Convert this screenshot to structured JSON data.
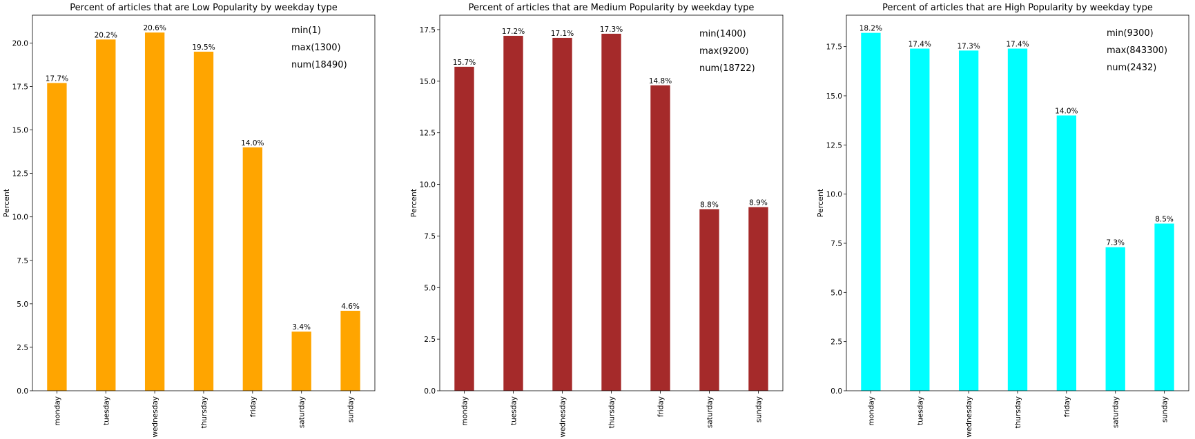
{
  "chart_data": [
    {
      "type": "bar",
      "title": "Percent of  articles that are Low Popularity by weekday type",
      "xlabel": "",
      "ylabel": "Percent",
      "categories": [
        "monday",
        "tuesday",
        "wednesday",
        "thursday",
        "friday",
        "saturday",
        "sunday"
      ],
      "values": [
        17.7,
        20.2,
        20.6,
        19.5,
        14.0,
        3.4,
        4.6
      ],
      "value_labels": [
        "17.7%",
        "20.2%",
        "20.6%",
        "19.5%",
        "14.0%",
        "3.4%",
        "4.6%"
      ],
      "color": "#FFA500",
      "ylim": [
        0,
        21.6
      ],
      "yticks": [
        0.0,
        2.5,
        5.0,
        7.5,
        10.0,
        12.5,
        15.0,
        17.5,
        20.0
      ],
      "ytick_labels": [
        "0.0",
        "2.5",
        "5.0",
        "7.5",
        "10.0",
        "12.5",
        "15.0",
        "17.5",
        "20.0"
      ],
      "annotations": [
        "min(1)",
        "max(1300)",
        "num(18490)"
      ],
      "grid": false
    },
    {
      "type": "bar",
      "title": "Percent of  articles that are Medium Popularity by weekday type",
      "xlabel": "",
      "ylabel": "Percent",
      "categories": [
        "monday",
        "tuesday",
        "wednesday",
        "thursday",
        "friday",
        "saturday",
        "sunday"
      ],
      "values": [
        15.7,
        17.2,
        17.1,
        17.3,
        14.8,
        8.8,
        8.9
      ],
      "value_labels": [
        "15.7%",
        "17.2%",
        "17.1%",
        "17.3%",
        "14.8%",
        "8.8%",
        "8.9%"
      ],
      "color": "#A52A2A",
      "ylim": [
        0,
        18.2
      ],
      "yticks": [
        0.0,
        2.5,
        5.0,
        7.5,
        10.0,
        12.5,
        15.0,
        17.5
      ],
      "ytick_labels": [
        "0.0",
        "2.5",
        "5.0",
        "7.5",
        "10.0",
        "12.5",
        "15.0",
        "17.5"
      ],
      "annotations": [
        "min(1400)",
        "max(9200)",
        "num(18722)"
      ],
      "grid": false
    },
    {
      "type": "bar",
      "title": "Percent of  articles that are High Popularity by weekday type",
      "xlabel": "",
      "ylabel": "Percent",
      "categories": [
        "monday",
        "tuesday",
        "wednesday",
        "thursday",
        "friday",
        "saturday",
        "sunday"
      ],
      "values": [
        18.2,
        17.4,
        17.3,
        17.4,
        14.0,
        7.3,
        8.5
      ],
      "value_labels": [
        "18.2%",
        "17.4%",
        "17.3%",
        "17.4%",
        "14.0%",
        "7.3%",
        "8.5%"
      ],
      "color": "#00FFFF",
      "ylim": [
        0,
        19.1
      ],
      "yticks": [
        0.0,
        2.5,
        5.0,
        7.5,
        10.0,
        12.5,
        15.0,
        17.5
      ],
      "ytick_labels": [
        "0.0",
        "2.5",
        "5.0",
        "7.5",
        "10.0",
        "12.5",
        "15.0",
        "17.5"
      ],
      "annotations": [
        "min(9300)",
        "max(843300)",
        "num(2432)"
      ],
      "grid": false
    }
  ]
}
